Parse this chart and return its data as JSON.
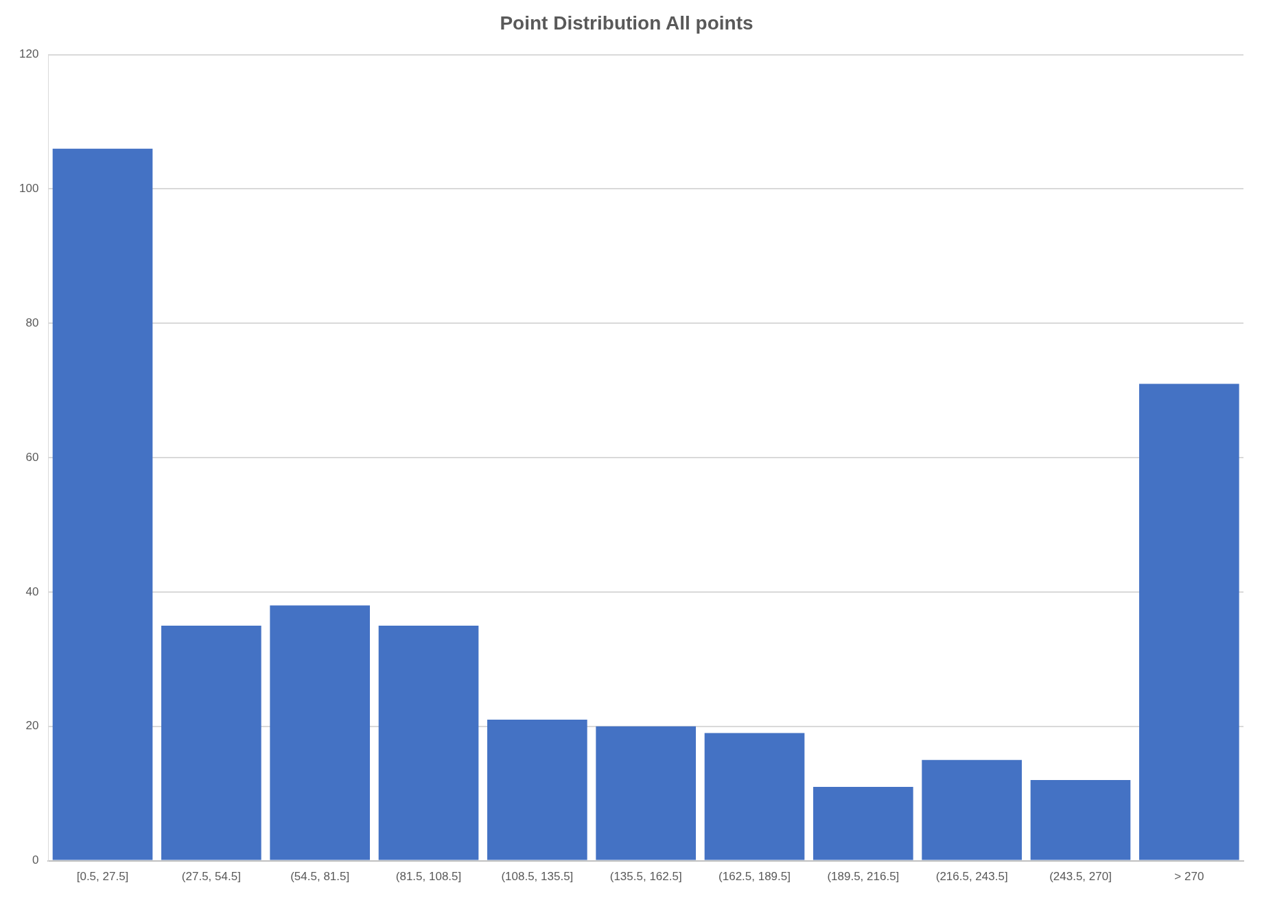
{
  "chart_data": {
    "type": "bar",
    "title": "Point Distribution All points",
    "categories": [
      "[0.5, 27.5]",
      "(27.5, 54.5]",
      "(54.5, 81.5]",
      "(81.5, 108.5]",
      "(108.5, 135.5]",
      "(135.5, 162.5]",
      "(162.5, 189.5]",
      "(189.5, 216.5]",
      "(216.5, 243.5]",
      "(243.5, 270]",
      "> 270"
    ],
    "values": [
      106,
      35,
      38,
      35,
      21,
      20,
      19,
      11,
      15,
      12,
      71
    ],
    "color": "#4472c4",
    "ylim": [
      0,
      120
    ],
    "yticks": [
      0,
      20,
      40,
      60,
      80,
      100,
      120
    ],
    "grid": "y",
    "legend": false
  }
}
